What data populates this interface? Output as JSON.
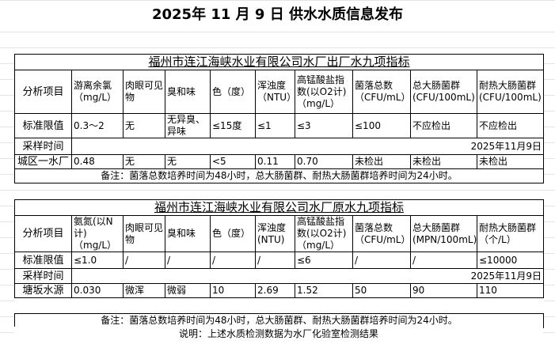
{
  "title": "2025年 11 月 9 日 供水水质信息发布",
  "headers_out": [
    "分析项目",
    "游离余氯（mg/L）",
    "肉眼可见物",
    "臭和味",
    "色（度）",
    "浑浊度（NTU）",
    "高锰酸盐指数(以O2计)（mg/L）",
    "菌落总数（CFU/mL）",
    "总大肠菌群(CFU/100mL)",
    "耐热大肠菌群(CFU/100mL)"
  ],
  "headers_raw": [
    "分析项目",
    "氨氮(以N计)（mg/L）",
    "肉眼可见物",
    "臭和味",
    "色（度）",
    "浑浊度(NTU)",
    "高锰酸盐指数(以O2计)（mg/L）",
    "菌落总数（CFU/mL）",
    "总大肠菌群(MPN/100mL)",
    "耐热大肠菌群（个/L）"
  ],
  "table1": {
    "title": "福州市连江海峡水业有限公司水厂出厂水九项指标",
    "standard": [
      "标准限值",
      "0.3～2",
      "无",
      "无异臭、异味",
      "≤15度",
      "≤1",
      "≤3",
      "≤100",
      "不应检出",
      "不应检出"
    ],
    "sample_label": "采样时间",
    "sample_date": "2025年11月9日",
    "row": [
      "城区一水厂",
      "0.48",
      "无",
      "无",
      "<5",
      "0.11",
      "0.70",
      "未检出",
      "未检出",
      "未检出"
    ],
    "note": "备注：菌落总数培养时间为48小时，总大肠菌群、耐热大肠菌群培养时间为24小时。"
  },
  "table2": {
    "title": "福州市连江海峡水业有限公司水厂原水九项指标",
    "standard": [
      "标准限值",
      "≤1.0",
      "/",
      "/",
      "/",
      "/",
      "≤6",
      "/",
      "/",
      "≤10000"
    ],
    "sample_label": "采样时间",
    "sample_date": "2025年11月9日",
    "row": [
      "塘坂水源",
      "0.030",
      "微浑",
      "微弱",
      "10",
      "2.69",
      "1.52",
      "50",
      "90",
      "110"
    ],
    "note": "备注：菌落总数培养时间为48小时，总大肠菌群、耐热大肠菌群培养时间为24小时。"
  },
  "footer": "说明：上述水质检测数据为水厂化验室检测结果"
}
